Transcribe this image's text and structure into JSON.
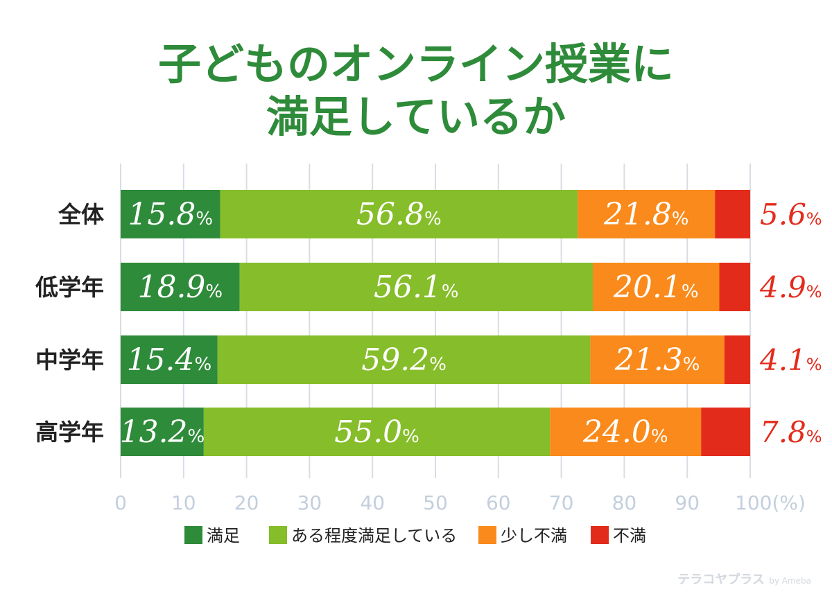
{
  "title": [
    "子どものオンライン授業に",
    "満足しているか"
  ],
  "colors": {
    "title": "#2e8b3a",
    "series": [
      "#2e8b3a",
      "#86bd2a",
      "#f98a1b",
      "#e32b1c"
    ],
    "outside_label": "#e32b1c",
    "tick_label": "#c3cfdd",
    "grid": "#d8dde4"
  },
  "chart_data": {
    "type": "bar",
    "orientation": "horizontal",
    "stacked": true,
    "title": "子どものオンライン授業に満足しているか",
    "categories": [
      "全体",
      "低学年",
      "中学年",
      "高学年"
    ],
    "series": [
      {
        "name": "満足",
        "values": [
          15.8,
          18.9,
          15.4,
          13.2
        ]
      },
      {
        "name": "ある程度満足している",
        "values": [
          56.8,
          56.1,
          59.2,
          55.0
        ]
      },
      {
        "name": "少し不満",
        "values": [
          21.8,
          20.1,
          21.3,
          24.0
        ]
      },
      {
        "name": "不満",
        "values": [
          5.6,
          4.9,
          4.1,
          7.8
        ]
      }
    ],
    "value_unit": "%",
    "xlim": [
      0,
      100
    ],
    "xticks": [
      "0",
      "10",
      "20",
      "30",
      "40",
      "50",
      "60",
      "70",
      "80",
      "90",
      "100(%)"
    ],
    "grid": true,
    "legend_position": "bottom"
  },
  "watermark": {
    "brand": "テラコヤプラス",
    "by": "by Ameba"
  }
}
